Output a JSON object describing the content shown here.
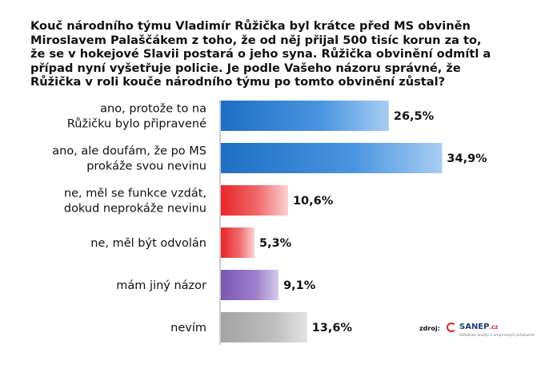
{
  "title": "Kouč národního týmu Vladimír Růžička byl krátce před MS obviněn\nMiroslavem Palaščákem z toho, že od něj přijal 500 tisíc korun za to,\nže se v hokejové Slavii postará o jeho syna. Růžička obvinění odmítl a\npřípad nyní vyšetřuje policie. Je podle Vašeho názoru  správné, že\nRůžička v roli kouče národního týmu po tomto obvinění zůstal?",
  "chart_data": {
    "type": "bar",
    "orientation": "horizontal",
    "categories": [
      [
        "ano, protože to na",
        "Růžičku bylo připravené"
      ],
      [
        "ano, ale doufám, že po MS",
        "prokáže svou nevinu"
      ],
      [
        "ne, měl se funkce vzdát,",
        "dokud neprokáže nevinu"
      ],
      [
        "ne, měl být odvolán"
      ],
      [
        "mám jiný názor"
      ],
      [
        "nevím"
      ]
    ],
    "values": [
      26.5,
      34.9,
      10.6,
      5.3,
      9.1,
      13.6
    ],
    "value_labels": [
      "26,5%",
      "34,9%",
      "10,6%",
      "5,3%",
      "9,1%",
      "13,6%"
    ],
    "bar_colors": [
      "#2f7fd0",
      "#2f7fd0",
      "#e8262a",
      "#e8262a",
      "#7f5cb4",
      "#a7a7a7"
    ],
    "xlim": [
      0,
      40
    ],
    "grid": false,
    "legend": "none"
  },
  "source": {
    "label": "zdroj:",
    "logo": "SANEP",
    "logo_suffix": ".cz",
    "tagline": "Středisko analýz a empirických průzkumů"
  }
}
